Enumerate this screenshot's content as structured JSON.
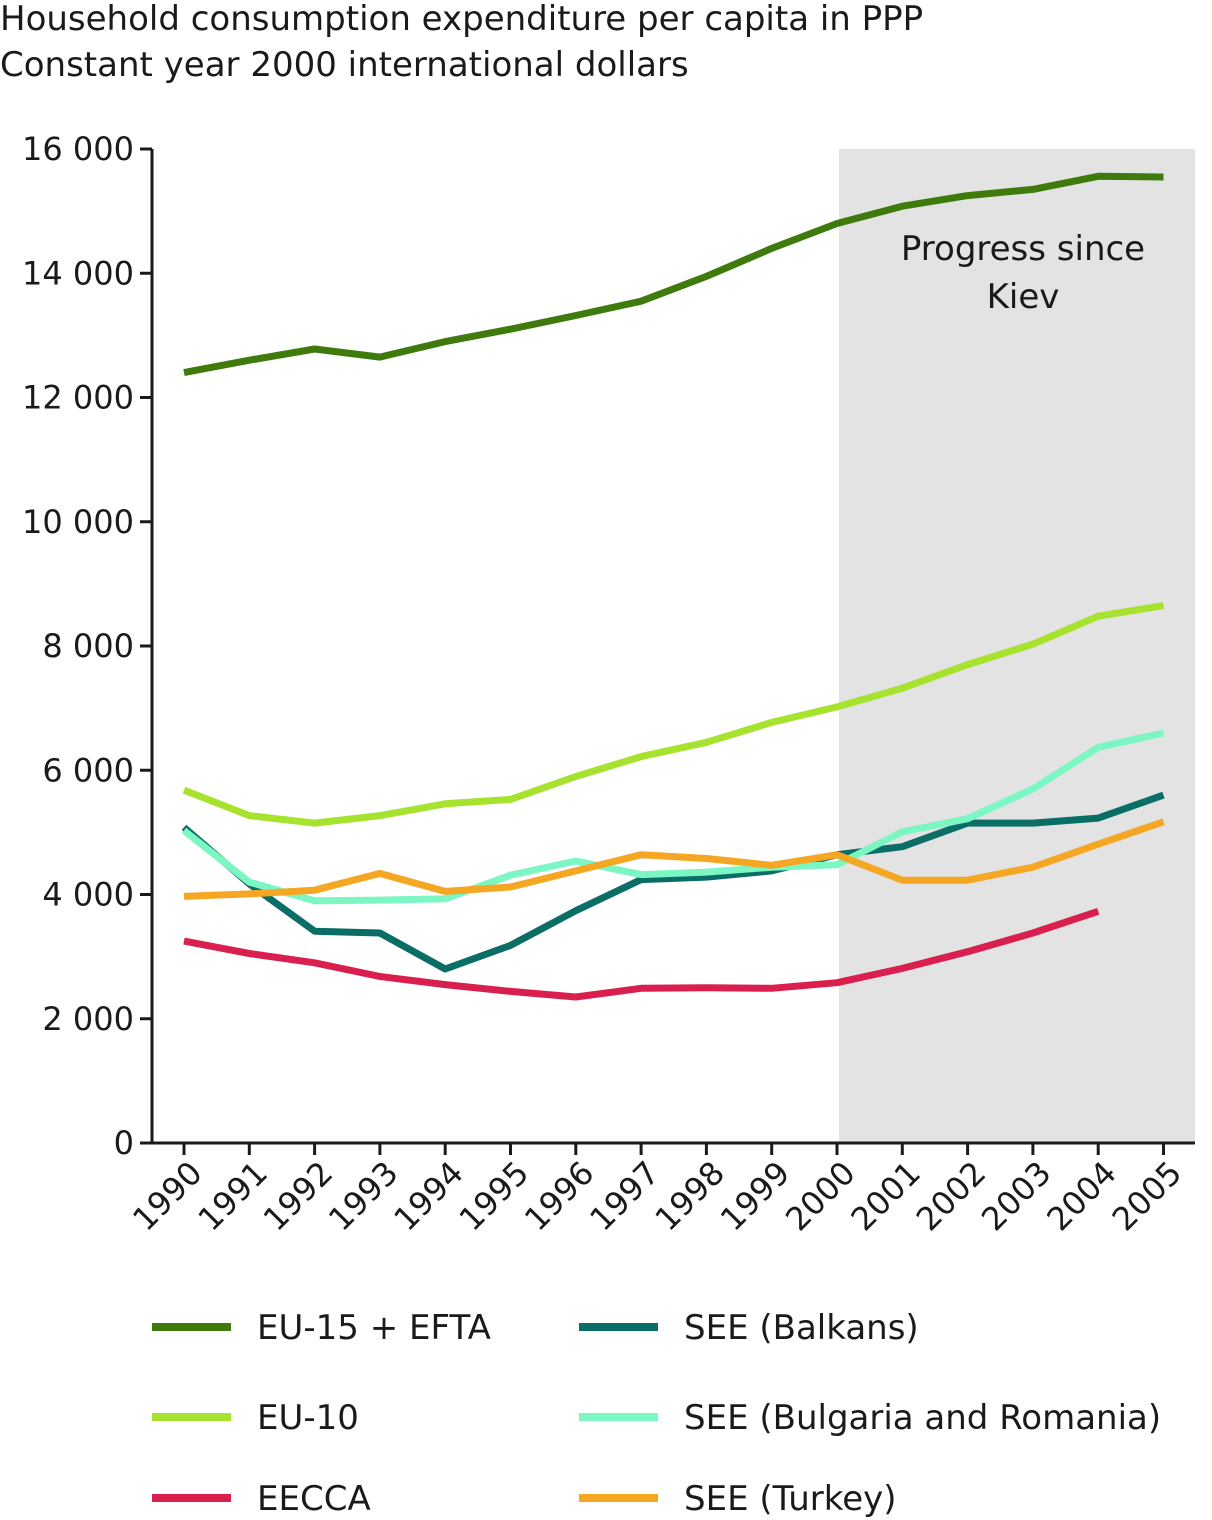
{
  "chart_data": {
    "type": "line",
    "title": "Household consumption expenditure per capita in PPP",
    "subtitle": "Constant year 2000 international dollars",
    "xlabel": "",
    "ylabel": "",
    "ylim": [
      0,
      16000
    ],
    "y_ticks": [
      0,
      2000,
      4000,
      6000,
      8000,
      10000,
      12000,
      14000,
      16000
    ],
    "y_tick_labels": [
      "0",
      "2 000",
      "4 000",
      "6 000",
      "8 000",
      "10 000",
      "12 000",
      "14 000",
      "16 000"
    ],
    "categories": [
      "1990",
      "1991",
      "1992",
      "1993",
      "1994",
      "1995",
      "1996",
      "1997",
      "1998",
      "1999",
      "2000",
      "2001",
      "2002",
      "2003",
      "2004",
      "2005"
    ],
    "grid": false,
    "legend_position": "bottom",
    "annotation": {
      "lines": [
        "Progress since",
        "Kiev"
      ],
      "x_from": "2000",
      "x_to": "2005",
      "fill": "#e3e3e3"
    },
    "series": [
      {
        "name": "EU-15 + EFTA",
        "color": "#3f7a0c",
        "values": [
          12400,
          12600,
          12780,
          12650,
          12900,
          13100,
          13320,
          13550,
          13950,
          14400,
          14800,
          15080,
          15250,
          15350,
          15560,
          15550
        ]
      },
      {
        "name": "EU-10",
        "color": "#a6e22e",
        "values": [
          5680,
          5270,
          5150,
          5270,
          5460,
          5530,
          5900,
          6220,
          6450,
          6770,
          7020,
          7320,
          7700,
          8030,
          8480,
          8650
        ]
      },
      {
        "name": "EECCA",
        "color": "#d81f4d",
        "values": [
          3250,
          3050,
          2900,
          2680,
          2550,
          2440,
          2350,
          2490,
          2500,
          2490,
          2580,
          2810,
          3080,
          3380,
          3730,
          null
        ]
      },
      {
        "name": "SEE (Balkans)",
        "color": "#0b6e66",
        "values": [
          5080,
          4170,
          3410,
          3380,
          2800,
          3180,
          3740,
          4240,
          4280,
          4380,
          4640,
          4770,
          5150,
          5150,
          5230,
          5600
        ]
      },
      {
        "name": "SEE (Bulgaria and Romania)",
        "color": "#7cf6c3",
        "values": [
          5030,
          4200,
          3900,
          3910,
          3930,
          4310,
          4540,
          4320,
          4360,
          4440,
          4480,
          5010,
          5220,
          5700,
          6370,
          6600
        ]
      },
      {
        "name": "SEE (Turkey)",
        "color": "#f5a623",
        "values": [
          3970,
          4010,
          4070,
          4340,
          4050,
          4120,
          4380,
          4640,
          4580,
          4470,
          4640,
          4230,
          4230,
          4440,
          4810,
          5170
        ]
      }
    ]
  }
}
